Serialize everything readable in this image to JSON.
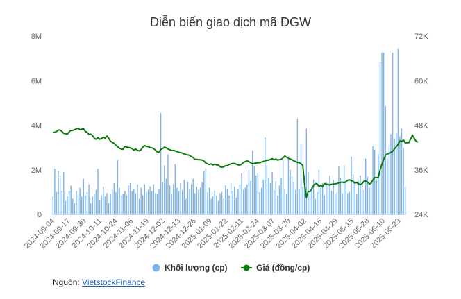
{
  "chart_data": {
    "type": "bar+line",
    "title": "Diễn biến giao dịch mã DGW",
    "x_tick_labels": [
      "2024-09-04",
      "2024-09-17",
      "2024-09-30",
      "2024-10-11",
      "2024-10-24",
      "2024-11-06",
      "2024-11-19",
      "2024-12-02",
      "2024-12-13",
      "2024-12-26",
      "2025-01-09",
      "2025-01-22",
      "2025-02-11",
      "2025-02-24",
      "2025-03-07",
      "2025-03-20",
      "2025-04-02",
      "2025-04-16",
      "2025-04-29",
      "2025-05-15",
      "2025-05-28",
      "2025-06-10",
      "2025-06-23"
    ],
    "y_left": {
      "min": 0,
      "max": 8000000,
      "ticks": [
        0,
        2000000,
        4000000,
        6000000,
        8000000
      ],
      "tick_labels": [
        "0",
        "2M",
        "4M",
        "6M",
        "8M"
      ]
    },
    "y_right": {
      "min": 24000,
      "max": 72000,
      "ticks": [
        24000,
        36000,
        48000,
        60000,
        72000
      ],
      "tick_labels": [
        "24K",
        "36K",
        "48K",
        "60K",
        "72K"
      ]
    },
    "series": [
      {
        "name": "Khối lượng (cp)",
        "type": "bar",
        "axis": "left",
        "color": "#7cb5ec",
        "values": [
          800000,
          2050000,
          1000000,
          1950000,
          1750000,
          1050000,
          1900000,
          600000,
          800000,
          1050000,
          1300000,
          700000,
          500000,
          1050000,
          900000,
          1200000,
          800000,
          1600000,
          850000,
          1000000,
          1350000,
          500000,
          800000,
          900000,
          1100000,
          2050000,
          650000,
          850000,
          1250000,
          800000,
          950000,
          500000,
          900000,
          1100000,
          1400000,
          1000000,
          2450000,
          1200000,
          850000,
          900000,
          1050000,
          850000,
          1300000,
          1400000,
          1050000,
          1150000,
          950000,
          1350000,
          700000,
          1200000,
          850000,
          1350000,
          1000000,
          1100000,
          1250000,
          1050000,
          1350000,
          950000,
          900000,
          1150000,
          4550000,
          1450000,
          2200000,
          1600000,
          2700000,
          1300000,
          900000,
          1350000,
          2250000,
          1200000,
          1050000,
          1400000,
          1100000,
          1550000,
          700000,
          1450000,
          1150000,
          1350000,
          1600000,
          950000,
          1250000,
          1100000,
          1200000,
          1450000,
          1950000,
          2050000,
          1000000,
          1200000,
          700000,
          800000,
          1050000,
          850000,
          600000,
          950000,
          1000000,
          700000,
          1300000,
          1150000,
          850000,
          1400000,
          1050000,
          1250000,
          750000,
          1150000,
          1350000,
          1850000,
          1100000,
          1200000,
          1350000,
          2000000,
          1500000,
          2850000,
          2150000,
          1750000,
          1850000,
          1000000,
          1200000,
          1550000,
          3450000,
          2200000,
          1650000,
          1400000,
          1900000,
          1100000,
          1500000,
          850000,
          1300000,
          1650000,
          2450000,
          1150000,
          900000,
          2600000,
          2000000,
          1700000,
          1450000,
          1100000,
          4300000,
          1150000,
          3150000,
          1250000,
          1750000,
          3850000,
          1900000,
          950000,
          1250000,
          1550000,
          700000,
          1000000,
          2000000,
          1200000,
          1400000,
          850000,
          1450000,
          1300000,
          1750000,
          1050000,
          1550000,
          900000,
          1000000,
          2150000,
          1650000,
          950000,
          2200000,
          1450000,
          950000,
          1000000,
          2600000,
          1800000,
          1400000,
          900000,
          1500000,
          1750000,
          1300000,
          1100000,
          2500000,
          1700000,
          1200000,
          1500000,
          3050000,
          2900000,
          1600000,
          2700000,
          6850000,
          7250000,
          7250000,
          4850000,
          2500000,
          3100000,
          3600000,
          7250000,
          3400000,
          3650000,
          7450000,
          3500000,
          3850000,
          3000000,
          1250000
        ]
      },
      {
        "name": "Giá (đồng/cp)",
        "type": "line",
        "axis": "right",
        "color": "#0a7a0a",
        "values": [
          46000,
          46100,
          46300,
          46700,
          46700,
          46300,
          45800,
          45700,
          45600,
          46200,
          46600,
          46600,
          46800,
          47000,
          47200,
          46800,
          46900,
          47100,
          46300,
          46100,
          45500,
          45600,
          45200,
          44500,
          44200,
          44700,
          44200,
          44400,
          44800,
          44500,
          45100,
          44500,
          43700,
          43400,
          43100,
          42600,
          42200,
          41800,
          41600,
          41500,
          42300,
          42100,
          42000,
          41900,
          41700,
          41300,
          41600,
          41200,
          41100,
          41400,
          42100,
          42500,
          42300,
          42200,
          42000,
          41900,
          41700,
          41300,
          40800,
          40700,
          41500,
          41700,
          42100,
          41900,
          41600,
          41400,
          41200,
          41200,
          41100,
          40900,
          40700,
          40600,
          40500,
          40300,
          40100,
          40000,
          39900,
          39500,
          39300,
          38800,
          38800,
          38700,
          38700,
          38600,
          38400,
          37800,
          37600,
          37400,
          37600,
          37300,
          37500,
          37300,
          37300,
          36800,
          36700,
          36800,
          37100,
          37100,
          37400,
          37600,
          37700,
          37700,
          37500,
          37300,
          37300,
          37500,
          38000,
          38200,
          38400,
          38200,
          37900,
          37600,
          37700,
          37800,
          37900,
          37900,
          38100,
          38200,
          38400,
          38600,
          38600,
          38800,
          39000,
          38700,
          38900,
          38600,
          38700,
          38800,
          39200,
          39700,
          39400,
          39100,
          38900,
          38700,
          38400,
          38200,
          38000,
          37900,
          37600,
          37200,
          32000,
          28500,
          30200,
          30100,
          30900,
          31800,
          32300,
          32200,
          31500,
          31800,
          31500,
          32300,
          32100,
          32100,
          31900,
          32100,
          32200,
          32200,
          32300,
          32500,
          32600,
          32700,
          32500,
          32800,
          33200,
          33300,
          33100,
          32900,
          32400,
          32600,
          32200,
          32000,
          32300,
          32900,
          33000,
          32700,
          32200,
          32400,
          33300,
          33900,
          33900,
          34000,
          36000,
          37500,
          38700,
          39900,
          40300,
          40400,
          40700,
          41000,
          41600,
          42200,
          42800,
          43800,
          43600,
          44000,
          43200,
          43300,
          43300,
          44300,
          45300,
          44500,
          43700,
          43400
        ]
      }
    ],
    "legend": {
      "position": "bottom",
      "labels": [
        "Khối lượng (cp)",
        "Giá (đồng/cp)"
      ]
    },
    "grid": false
  },
  "source": {
    "label": "Nguồn:",
    "link_text": "VietstockFinance"
  }
}
